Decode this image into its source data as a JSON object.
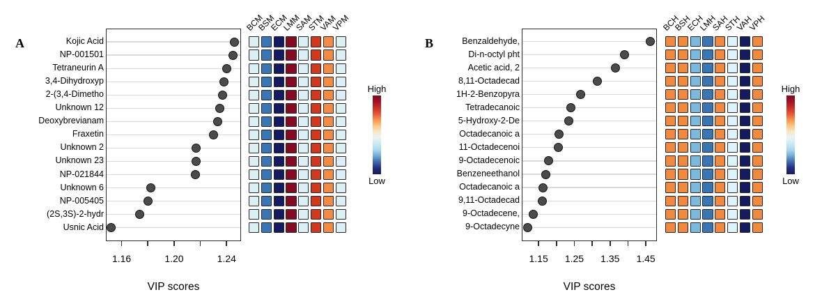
{
  "chart_data": [
    {
      "panel": "A",
      "type": "scatter",
      "orientation": "horizontal-dot-plot",
      "title": "",
      "xlabel": "VIP scores",
      "ylabel": "",
      "xlim": [
        1.148,
        1.251
      ],
      "xticks": [
        1.16,
        1.18,
        1.2,
        1.22,
        1.24
      ],
      "xtick_labels": [
        "1.16",
        "",
        "1.20",
        "",
        "1.24"
      ],
      "grid": "horizontal",
      "categories": [
        "Kojic Acid",
        "NP-001501",
        "Tetraneurin A",
        "3,4-Dihydroxyp",
        "2-(3,4-Dimetho",
        "Unknown 12",
        "Deoxybrevianam",
        "Fraxetin",
        "Unknown 2",
        "Unknown 23",
        "NP-021844",
        "Unknown 6",
        "NP-005405",
        "(2S,3S)-2-hydr",
        "Usnic Acid"
      ],
      "values": [
        1.246,
        1.245,
        1.24,
        1.238,
        1.237,
        1.235,
        1.233,
        1.23,
        1.217,
        1.217,
        1.216,
        1.182,
        1.18,
        1.174,
        1.152
      ],
      "heatmap": {
        "columns": [
          "BCM",
          "BSM",
          "ECM",
          "LMM",
          "SAM",
          "STM",
          "VAM",
          "VPM"
        ],
        "column_colors": [
          "#DBEFF5",
          "#3A76B4",
          "#151B60",
          "#830B24",
          "#DBEFF5",
          "#CF3A1E",
          "#F28C44",
          "#DBEFF5"
        ],
        "rows_uniform": true
      }
    },
    {
      "panel": "B",
      "type": "scatter",
      "orientation": "horizontal-dot-plot",
      "title": "",
      "xlabel": "VIP scores",
      "ylabel": "",
      "xlim": [
        1.103,
        1.481
      ],
      "xticks": [
        1.15,
        1.2,
        1.25,
        1.3,
        1.35,
        1.4,
        1.45
      ],
      "xtick_labels": [
        "1.15",
        "",
        "1.25",
        "",
        "1.35",
        "",
        "1.45"
      ],
      "grid": "horizontal",
      "categories": [
        "Benzaldehyde,",
        "Di-n-octyl pht",
        "Acetic acid, 2",
        "8,11-Octadecad",
        "1H-2-Benzopyra",
        "Tetradecanoic",
        "5-Hydroxy-2-De",
        "Octadecanoic a",
        "11-Octadecenoi",
        "9-Octadecenoic",
        "Benzeneethanol",
        "Octadecanoic a",
        "9,11-Octadecad",
        "9-Octadecene,",
        "9-Octadecyne"
      ],
      "values": [
        1.463,
        1.39,
        1.366,
        1.315,
        1.267,
        1.24,
        1.235,
        1.207,
        1.205,
        1.178,
        1.17,
        1.163,
        1.16,
        1.135,
        1.12
      ],
      "heatmap": {
        "columns": [
          "BCH",
          "BSH",
          "ECH",
          "LMH",
          "SAH",
          "STH",
          "VAH",
          "VPH"
        ],
        "column_colors": [
          "#F08A40",
          "#F08A40",
          "#7DB9DC",
          "#3A76B4",
          "#F08A40",
          "#DDF4F8",
          "#161A5E",
          "#F08A40"
        ],
        "rows_uniform": true
      }
    }
  ],
  "figure": {
    "panel_letters": [
      "A",
      "B"
    ],
    "legend": {
      "high": "High",
      "low": "Low"
    },
    "colorbar_gradient": [
      "#7A0B22",
      "#A31026",
      "#C62E26",
      "#E65438",
      "#F9924F",
      "#FDC683",
      "#F8E8C9",
      "#E7F4F4",
      "#C9E9F2",
      "#A7D8E9",
      "#6FA8D3",
      "#3A68AF",
      "#232A7D",
      "#171D62"
    ],
    "dot_color": "#4B4B4B",
    "gridline_color": "#D9D9D9"
  }
}
